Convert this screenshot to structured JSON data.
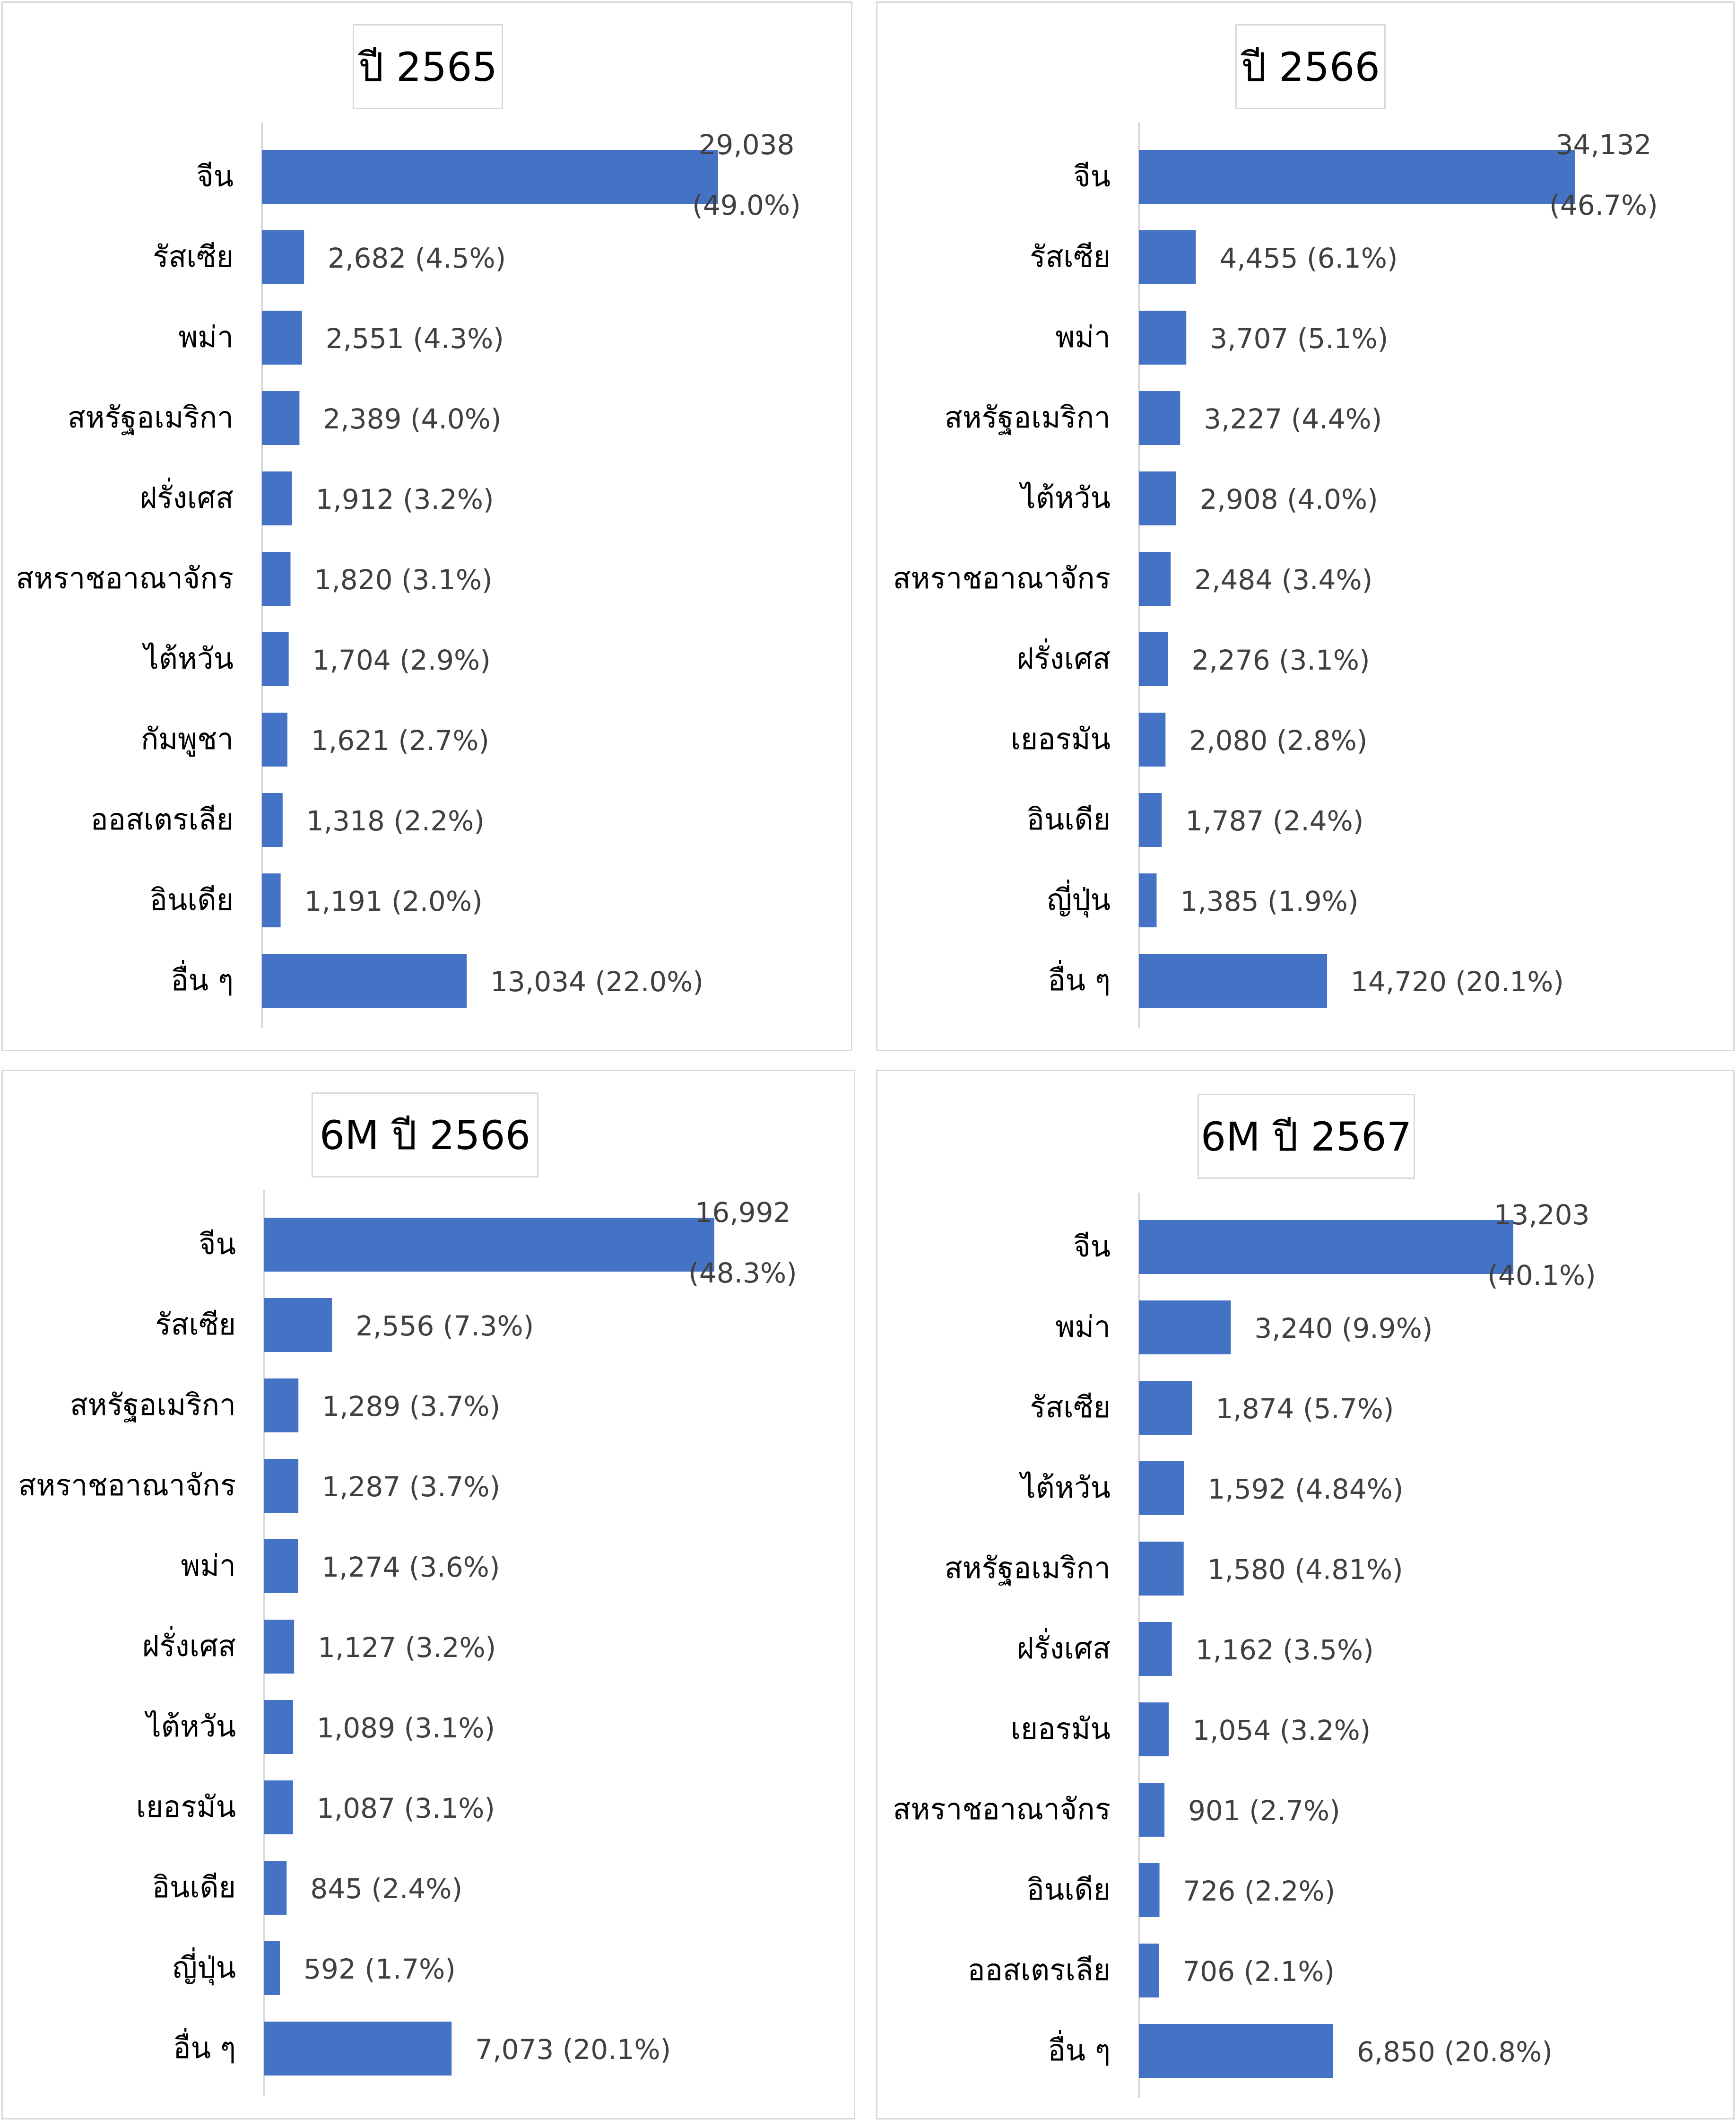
{
  "chart_data": [
    {
      "type": "bar",
      "orientation": "horizontal",
      "title": "ปี 2565",
      "categories": [
        "จีน",
        "รัสเซีย",
        "พม่า",
        "สหรัฐอเมริกา",
        "ฝรั่งเศส",
        "สหราชอาณาจักร",
        "ไต้หวัน",
        "กัมพูชา",
        "ออสเตรเลีย",
        "อินเดีย",
        "อื่น ๆ"
      ],
      "values": [
        29038,
        2682,
        2551,
        2389,
        1912,
        1820,
        1704,
        1621,
        1318,
        1191,
        13034
      ],
      "value_labels": [
        "29,038",
        "2,682 (4.5%)",
        "2,551 (4.3%)",
        "2,389 (4.0%)",
        "1,912 (3.2%)",
        "1,820 (3.1%)",
        "1,704 (2.9%)",
        "1,621 (2.7%)",
        "1,318 (2.2%)",
        "1,191 (2.0%)",
        "13,034 (22.0%)"
      ],
      "top_pct_label": "(49.0%)",
      "xlim": [
        0,
        29038
      ]
    },
    {
      "type": "bar",
      "orientation": "horizontal",
      "title": "ปี 2566",
      "categories": [
        "จีน",
        "รัสเซีย",
        "พม่า",
        "สหรัฐอเมริกา",
        "ไต้หวัน",
        "สหราชอาณาจักร",
        "ฝรั่งเศส",
        "เยอรมัน",
        "อินเดีย",
        "ญี่ปุ่น",
        "อื่น ๆ"
      ],
      "values": [
        34132,
        4455,
        3707,
        3227,
        2908,
        2484,
        2276,
        2080,
        1787,
        1385,
        14720
      ],
      "value_labels": [
        "34,132",
        "4,455 (6.1%)",
        "3,707 (5.1%)",
        "3,227 (4.4%)",
        "2,908 (4.0%)",
        "2,484 (3.4%)",
        "2,276 (3.1%)",
        "2,080 (2.8%)",
        "1,787 (2.4%)",
        "1,385 (1.9%)",
        "14,720 (20.1%)"
      ],
      "top_pct_label": "(46.7%)",
      "xlim": [
        0,
        34132
      ]
    },
    {
      "type": "bar",
      "orientation": "horizontal",
      "title": "6M ปี 2566",
      "categories": [
        "จีน",
        "รัสเซีย",
        "สหรัฐอเมริกา",
        "สหราชอาณาจักร",
        "พม่า",
        "ฝรั่งเศส",
        "ไต้หวัน",
        "เยอรมัน",
        "อินเดีย",
        "ญี่ปุ่น",
        "อื่น ๆ"
      ],
      "values": [
        16992,
        2556,
        1289,
        1287,
        1274,
        1127,
        1089,
        1087,
        845,
        592,
        7073
      ],
      "value_labels": [
        "16,992",
        "2,556 (7.3%)",
        "1,289 (3.7%)",
        "1,287 (3.7%)",
        "1,274 (3.6%)",
        "1,127 (3.2%)",
        "1,089 (3.1%)",
        "1,087 (3.1%)",
        "845 (2.4%)",
        "592 (1.7%)",
        "7,073 (20.1%)"
      ],
      "top_pct_label": "(48.3%)",
      "xlim": [
        0,
        16992
      ]
    },
    {
      "type": "bar",
      "orientation": "horizontal",
      "title": "6M ปี 2567",
      "categories": [
        "จีน",
        "พม่า",
        "รัสเซีย",
        "ไต้หวัน",
        "สหรัฐอเมริกา",
        "ฝรั่งเศส",
        "เยอรมัน",
        "สหราชอาณาจักร",
        "อินเดีย",
        "ออสเตรเลีย",
        "อื่น ๆ"
      ],
      "values": [
        13203,
        3240,
        1874,
        1592,
        1580,
        1162,
        1054,
        901,
        726,
        706,
        6850
      ],
      "value_labels": [
        "13,203",
        "3,240 (9.9%)",
        "1,874 (5.7%)",
        "1,592 (4.84%)",
        "1,580 (4.81%)",
        "1,162 (3.5%)",
        "1,054 (3.2%)",
        "901 (2.7%)",
        "726 (2.2%)",
        "706 (2.1%)",
        "6,850 (20.8%)"
      ],
      "top_pct_label": "(40.1%)",
      "xlim": [
        0,
        13203
      ]
    }
  ],
  "colors": {
    "bar": "#4472C4",
    "axis": "#d9d9d9",
    "panel_border": "#d9d9d9"
  }
}
